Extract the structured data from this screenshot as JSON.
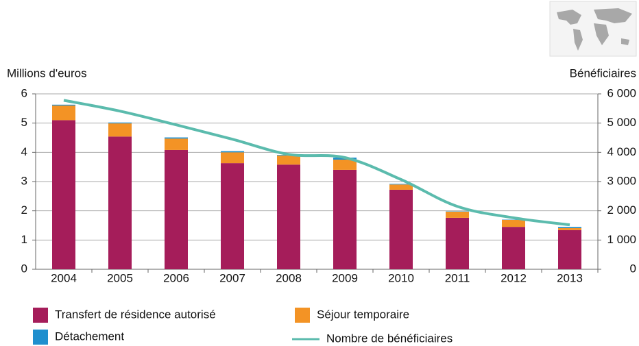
{
  "chart_data": {
    "type": "bar",
    "y_label": "Millions d'euros",
    "y2_label": "Bénéficiaires",
    "categories": [
      "2004",
      "2005",
      "2006",
      "2007",
      "2008",
      "2009",
      "2010",
      "2011",
      "2012",
      "2013"
    ],
    "stacked": true,
    "grid": true,
    "legend": "bottom",
    "series": [
      {
        "name": "Transfert de résidence autorisé",
        "color": "#a51d5a",
        "values": [
          5.1,
          4.54,
          4.08,
          3.63,
          3.58,
          3.4,
          2.72,
          1.76,
          1.45,
          1.34
        ]
      },
      {
        "name": "Séjour temporaire",
        "color": "#f39325",
        "values": [
          0.5,
          0.45,
          0.39,
          0.37,
          0.31,
          0.35,
          0.18,
          0.21,
          0.24,
          0.07
        ]
      },
      {
        "name": "Détachement",
        "color": "#1f8fce",
        "values": [
          0.03,
          0.03,
          0.04,
          0.04,
          0.02,
          0.07,
          0.02,
          0.01,
          0.01,
          0.04
        ]
      },
      {
        "name": "Nombre de bénéficiaires",
        "color": "#5bbbad",
        "type": "line",
        "axis": "y2",
        "values": [
          5780,
          5410,
          4940,
          4450,
          3930,
          3820,
          3070,
          2150,
          1760,
          1520
        ]
      }
    ],
    "ylim": [
      0,
      6
    ],
    "yticks": [
      0,
      1,
      2,
      3,
      4,
      5,
      6
    ],
    "y2lim": [
      0,
      6000
    ],
    "y2ticks": [
      0,
      {
        "value": 1000,
        "label": "1 000"
      },
      {
        "value": 2000,
        "label": "2 000"
      },
      {
        "value": 3000,
        "label": "3 000"
      },
      {
        "value": 4000,
        "label": "4 000"
      },
      {
        "value": 5000,
        "label": "5 000"
      },
      {
        "value": 6000,
        "label": "6 000"
      }
    ]
  }
}
